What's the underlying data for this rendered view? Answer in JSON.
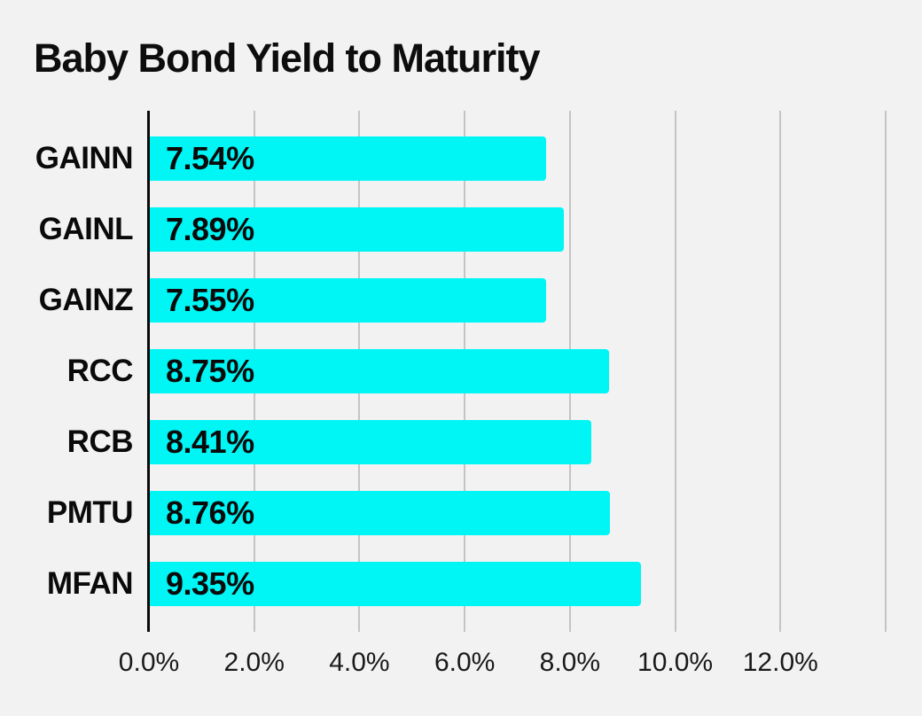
{
  "title": "Baby Bond Yield to Maturity",
  "chart_data": {
    "type": "bar",
    "orientation": "horizontal",
    "title": "Baby Bond Yield to Maturity",
    "categories": [
      "GAINN",
      "GAINL",
      "GAINZ",
      "RCC",
      "RCB",
      "PMTU",
      "MFAN"
    ],
    "values": [
      7.54,
      7.89,
      7.55,
      8.75,
      8.41,
      8.76,
      9.35
    ],
    "value_labels": [
      "7.54%",
      "7.89%",
      "7.55%",
      "8.75%",
      "8.41%",
      "8.76%",
      "9.35%"
    ],
    "xlabel": "",
    "ylabel": "",
    "xlim": [
      0,
      14
    ],
    "x_ticks": [
      0,
      2,
      4,
      6,
      8,
      10,
      12
    ],
    "x_tick_labels": [
      "0.0%",
      "2.0%",
      "4.0%",
      "6.0%",
      "8.0%",
      "10.0%",
      "12.0%"
    ],
    "gridline_values": [
      2,
      4,
      6,
      8,
      10,
      12,
      14
    ],
    "grid": true,
    "legend": false,
    "colors": {
      "bar": "#00f5f5",
      "grid": "#c4c4c4",
      "axis": "#0a0a0a",
      "background": "#f2f2f2",
      "text": "#0a0a0a"
    }
  }
}
